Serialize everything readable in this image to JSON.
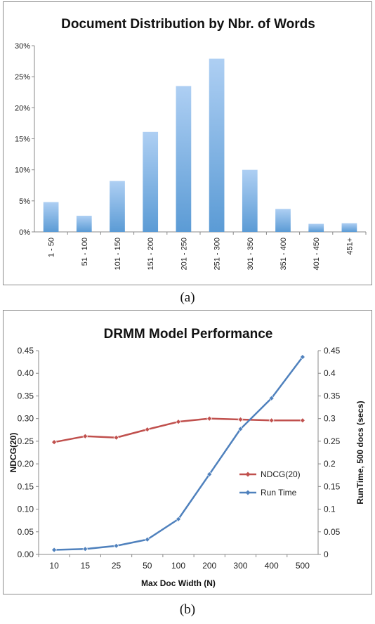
{
  "chart_data": [
    {
      "type": "bar",
      "title": "Document Distribution by Nbr. of Words",
      "categories": [
        "1 - 50",
        "51 - 100",
        "101 - 150",
        "151 - 200",
        "201 - 250",
        "251 - 300",
        "301 - 350",
        "351 - 400",
        "401 - 450",
        "451+"
      ],
      "values": [
        0.048,
        0.026,
        0.082,
        0.161,
        0.235,
        0.279,
        0.1,
        0.037,
        0.013,
        0.014
      ],
      "yticks": [
        "0%",
        "5%",
        "10%",
        "15%",
        "20%",
        "25%",
        "30%"
      ],
      "ylim": [
        0,
        0.3
      ],
      "grid": false,
      "legend": "none",
      "bar_color": "#5b9bd5",
      "caption": "(a)"
    },
    {
      "type": "line",
      "title": "DRMM Model Performance",
      "categories": [
        "10",
        "15",
        "25",
        "50",
        "100",
        "200",
        "300",
        "400",
        "500"
      ],
      "xlabel": "Max Doc Width (N)",
      "ylabel": "NDCG(20)",
      "ylabel_right": "RunTime, 500 docs (secs)",
      "ylim": [
        0,
        0.45
      ],
      "ylim_right": [
        0,
        0.45
      ],
      "yticks": [
        "0.00",
        "0.05",
        "0.10",
        "0.15",
        "0.20",
        "0.25",
        "0.30",
        "0.35",
        "0.40",
        "0.45"
      ],
      "yticks_right": [
        "0",
        "0.05",
        "0.1",
        "0.15",
        "0.2",
        "0.25",
        "0.3",
        "0.35",
        "0.4",
        "0.45"
      ],
      "legend": "right",
      "grid": false,
      "series": [
        {
          "name": "NDCG(20)",
          "axis": "left",
          "color": "#c0504d",
          "marker": "diamond",
          "values": [
            0.248,
            0.261,
            0.258,
            0.276,
            0.293,
            0.3,
            0.298,
            0.296,
            0.296
          ]
        },
        {
          "name": "Run Time",
          "axis": "right",
          "color": "#4f81bd",
          "marker": "diamond",
          "values": [
            0.01,
            0.012,
            0.019,
            0.033,
            0.078,
            0.177,
            0.277,
            0.345,
            0.436
          ]
        }
      ],
      "caption": "(b)"
    }
  ]
}
